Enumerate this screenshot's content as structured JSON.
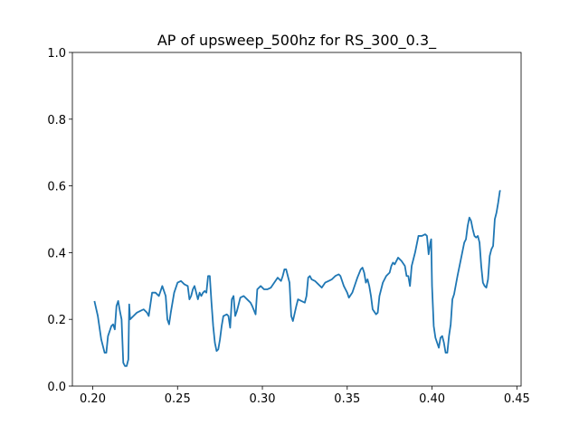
{
  "chart_data": {
    "type": "line",
    "title": "AP of upsweep_500hz for RS_300_0.3_",
    "x": [
      0.201,
      0.203,
      0.205,
      0.207,
      0.208,
      0.209,
      0.211,
      0.212,
      0.213,
      0.214,
      0.215,
      0.216,
      0.217,
      0.218,
      0.219,
      0.22,
      0.221,
      0.2215,
      0.222,
      0.224,
      0.226,
      0.228,
      0.23,
      0.232,
      0.233,
      0.235,
      0.237,
      0.239,
      0.241,
      0.243,
      0.244,
      0.245,
      0.246,
      0.248,
      0.25,
      0.252,
      0.254,
      0.256,
      0.257,
      0.258,
      0.259,
      0.26,
      0.262,
      0.263,
      0.264,
      0.265,
      0.266,
      0.267,
      0.268,
      0.269,
      0.27,
      0.271,
      0.272,
      0.273,
      0.274,
      0.275,
      0.276,
      0.277,
      0.279,
      0.28,
      0.281,
      0.282,
      0.283,
      0.284,
      0.285,
      0.287,
      0.289,
      0.291,
      0.293,
      0.294,
      0.296,
      0.297,
      0.299,
      0.301,
      0.303,
      0.305,
      0.307,
      0.309,
      0.311,
      0.312,
      0.313,
      0.314,
      0.316,
      0.317,
      0.318,
      0.32,
      0.321,
      0.323,
      0.325,
      0.326,
      0.327,
      0.328,
      0.329,
      0.331,
      0.333,
      0.335,
      0.337,
      0.339,
      0.341,
      0.343,
      0.345,
      0.346,
      0.348,
      0.35,
      0.351,
      0.353,
      0.355,
      0.356,
      0.358,
      0.359,
      0.36,
      0.361,
      0.362,
      0.363,
      0.364,
      0.365,
      0.367,
      0.368,
      0.369,
      0.371,
      0.373,
      0.375,
      0.376,
      0.377,
      0.378,
      0.38,
      0.382,
      0.384,
      0.385,
      0.386,
      0.387,
      0.388,
      0.39,
      0.392,
      0.394,
      0.396,
      0.397,
      0.398,
      0.399,
      0.3995,
      0.4,
      0.401,
      0.402,
      0.403,
      0.404,
      0.405,
      0.406,
      0.407,
      0.408,
      0.409,
      0.41,
      0.411,
      0.412,
      0.413,
      0.415,
      0.417,
      0.419,
      0.42,
      0.421,
      0.422,
      0.423,
      0.424,
      0.425,
      0.426,
      0.427,
      0.428,
      0.429,
      0.43,
      0.431,
      0.432,
      0.433,
      0.434,
      0.435,
      0.436,
      0.437,
      0.438,
      0.439,
      0.44,
      0.4405
    ],
    "values": [
      0.255,
      0.21,
      0.14,
      0.1,
      0.1,
      0.15,
      0.18,
      0.185,
      0.17,
      0.24,
      0.255,
      0.225,
      0.2,
      0.07,
      0.06,
      0.06,
      0.08,
      0.245,
      0.2,
      0.21,
      0.22,
      0.225,
      0.23,
      0.22,
      0.21,
      0.28,
      0.28,
      0.27,
      0.3,
      0.27,
      0.2,
      0.185,
      0.22,
      0.28,
      0.31,
      0.315,
      0.305,
      0.3,
      0.26,
      0.27,
      0.29,
      0.3,
      0.26,
      0.28,
      0.27,
      0.28,
      0.285,
      0.28,
      0.33,
      0.33,
      0.25,
      0.18,
      0.13,
      0.105,
      0.11,
      0.14,
      0.18,
      0.21,
      0.215,
      0.21,
      0.175,
      0.26,
      0.27,
      0.21,
      0.225,
      0.265,
      0.27,
      0.26,
      0.25,
      0.24,
      0.215,
      0.29,
      0.3,
      0.29,
      0.29,
      0.295,
      0.31,
      0.325,
      0.315,
      0.33,
      0.35,
      0.35,
      0.31,
      0.21,
      0.195,
      0.24,
      0.26,
      0.255,
      0.25,
      0.27,
      0.325,
      0.33,
      0.32,
      0.315,
      0.305,
      0.295,
      0.31,
      0.315,
      0.32,
      0.33,
      0.335,
      0.33,
      0.3,
      0.28,
      0.265,
      0.28,
      0.31,
      0.325,
      0.35,
      0.355,
      0.34,
      0.31,
      0.32,
      0.3,
      0.27,
      0.23,
      0.215,
      0.22,
      0.27,
      0.31,
      0.33,
      0.34,
      0.36,
      0.37,
      0.365,
      0.385,
      0.375,
      0.36,
      0.33,
      0.33,
      0.3,
      0.36,
      0.4,
      0.45,
      0.45,
      0.455,
      0.45,
      0.395,
      0.43,
      0.44,
      0.3,
      0.18,
      0.145,
      0.13,
      0.115,
      0.145,
      0.15,
      0.13,
      0.1,
      0.1,
      0.15,
      0.185,
      0.26,
      0.275,
      0.33,
      0.38,
      0.43,
      0.44,
      0.48,
      0.505,
      0.495,
      0.47,
      0.45,
      0.445,
      0.45,
      0.43,
      0.36,
      0.31,
      0.3,
      0.295,
      0.32,
      0.39,
      0.41,
      0.42,
      0.5,
      0.52,
      0.55,
      0.585,
      0.585
    ],
    "color": "#1f77b4",
    "xlim": [
      0.188,
      0.4525
    ],
    "xticks": [
      {
        "value": 0.2,
        "label": "0.20"
      },
      {
        "value": 0.25,
        "label": "0.25"
      },
      {
        "value": 0.3,
        "label": "0.30"
      },
      {
        "value": 0.35,
        "label": "0.35"
      },
      {
        "value": 0.4,
        "label": "0.40"
      },
      {
        "value": 0.45,
        "label": "0.45"
      }
    ],
    "ylim": [
      0,
      1
    ],
    "yticks": [
      {
        "value": 0,
        "label": "0.0"
      },
      {
        "value": 0.2,
        "label": "0.2"
      },
      {
        "value": 0.4,
        "label": "0.4"
      },
      {
        "value": 0.6,
        "label": "0.6"
      },
      {
        "value": 0.8,
        "label": "0.8"
      },
      {
        "value": 1,
        "label": "1.0"
      }
    ]
  }
}
